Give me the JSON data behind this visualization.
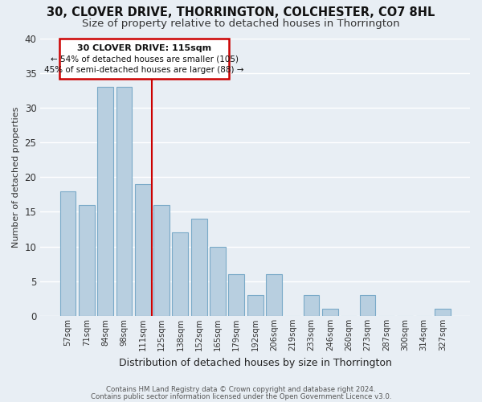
{
  "title": "30, CLOVER DRIVE, THORRINGTON, COLCHESTER, CO7 8HL",
  "subtitle": "Size of property relative to detached houses in Thorrington",
  "xlabel": "Distribution of detached houses by size in Thorrington",
  "ylabel": "Number of detached properties",
  "bar_labels": [
    "57sqm",
    "71sqm",
    "84sqm",
    "98sqm",
    "111sqm",
    "125sqm",
    "138sqm",
    "152sqm",
    "165sqm",
    "179sqm",
    "192sqm",
    "206sqm",
    "219sqm",
    "233sqm",
    "246sqm",
    "260sqm",
    "273sqm",
    "287sqm",
    "300sqm",
    "314sqm",
    "327sqm"
  ],
  "bar_values": [
    18,
    16,
    33,
    33,
    19,
    16,
    12,
    14,
    10,
    6,
    3,
    6,
    0,
    3,
    1,
    0,
    3,
    0,
    0,
    0,
    1
  ],
  "bar_color": "#b8cfe0",
  "bar_edge_color": "#7aaac8",
  "vline_x_index": 4,
  "vline_color": "#cc0000",
  "annotation_title": "30 CLOVER DRIVE: 115sqm",
  "annotation_line1": "← 54% of detached houses are smaller (105)",
  "annotation_line2": "45% of semi-detached houses are larger (88) →",
  "annotation_box_color": "#ffffff",
  "annotation_box_edge": "#cc0000",
  "ylim": [
    0,
    40
  ],
  "yticks": [
    0,
    5,
    10,
    15,
    20,
    25,
    30,
    35,
    40
  ],
  "footer1": "Contains HM Land Registry data © Crown copyright and database right 2024.",
  "footer2": "Contains public sector information licensed under the Open Government Licence v3.0.",
  "background_color": "#e8eef4",
  "grid_color": "#d0d8e0",
  "title_fontsize": 10.5,
  "subtitle_fontsize": 9.5
}
